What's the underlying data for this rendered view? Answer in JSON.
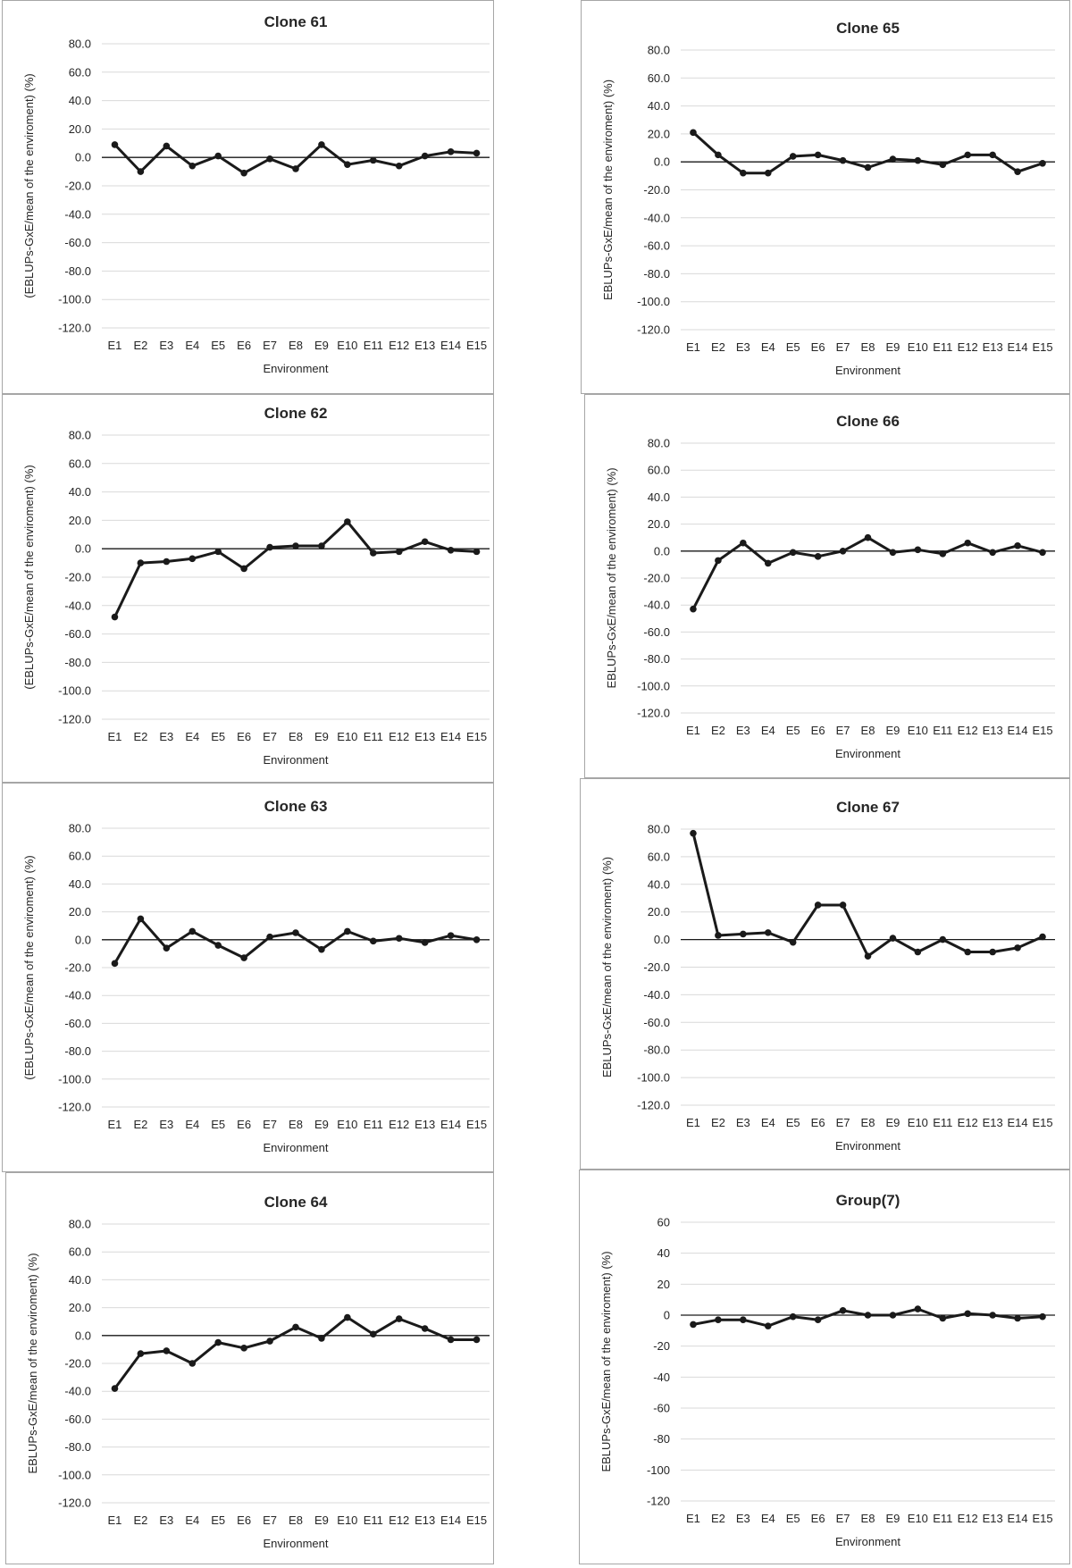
{
  "colors": {
    "line": "#1a1a1a",
    "grid": "#d9d9d9",
    "zero_axis": "#1a1a1a",
    "border": "#a6a6a6",
    "text": "#262626"
  },
  "chart_data": [
    {
      "type": "line",
      "title": "Clone 61",
      "xlabel": "Environment",
      "ylabel": "(EBLUPs-GxE/mean of the enviroment) (%)",
      "categories": [
        "E1",
        "E2",
        "E3",
        "E4",
        "E5",
        "E6",
        "E7",
        "E8",
        "E9",
        "E10",
        "E11",
        "E12",
        "E13",
        "E14",
        "E15"
      ],
      "values": [
        9,
        -10,
        8,
        -6,
        1,
        -11,
        -1,
        -8,
        9,
        -5,
        -2,
        -6,
        1,
        4,
        3
      ],
      "ylim": [
        -120,
        80
      ],
      "yticks": [
        80,
        60,
        40,
        20,
        0,
        -20,
        -40,
        -60,
        -80,
        -100,
        -120
      ],
      "ytick_labels": [
        "80.0",
        "60.0",
        "40.0",
        "20.0",
        "0.0",
        "-20.0",
        "-40.0",
        "-60.0",
        "-80.0",
        "-100.0",
        "-120.0"
      ],
      "grid": true
    },
    {
      "type": "line",
      "title": "Clone 65",
      "xlabel": "Environment",
      "ylabel": "EBLUPs-GxE/mean of the enviroment) (%)",
      "categories": [
        "E1",
        "E2",
        "E3",
        "E4",
        "E5",
        "E6",
        "E7",
        "E8",
        "E9",
        "E10",
        "E11",
        "E12",
        "E13",
        "E14",
        "E15"
      ],
      "values": [
        21,
        5,
        -8,
        -8,
        4,
        5,
        1,
        -4,
        2,
        1,
        -2,
        5,
        5,
        -7,
        -1
      ],
      "ylim": [
        -120,
        80
      ],
      "yticks": [
        80,
        60,
        40,
        20,
        0,
        -20,
        -40,
        -60,
        -80,
        -100,
        -120
      ],
      "ytick_labels": [
        "80.0",
        "60.0",
        "40.0",
        "20.0",
        "0.0",
        "-20.0",
        "-40.0",
        "-60.0",
        "-80.0",
        "-100.0",
        "-120.0"
      ],
      "grid": true
    },
    {
      "type": "line",
      "title": "Clone 62",
      "xlabel": "Environment",
      "ylabel": "(EBLUPs-GxE/mean of the enviroment) (%)",
      "categories": [
        "E1",
        "E2",
        "E3",
        "E4",
        "E5",
        "E6",
        "E7",
        "E8",
        "E9",
        "E10",
        "E11",
        "E12",
        "E13",
        "E14",
        "E15"
      ],
      "values": [
        -48,
        -10,
        -9,
        -7,
        -2,
        -14,
        1,
        2,
        2,
        19,
        -3,
        -2,
        5,
        -1,
        -2
      ],
      "ylim": [
        -120,
        80
      ],
      "yticks": [
        80,
        60,
        40,
        20,
        0,
        -20,
        -40,
        -60,
        -80,
        -100,
        -120
      ],
      "ytick_labels": [
        "80.0",
        "60.0",
        "40.0",
        "20.0",
        "0.0",
        "-20.0",
        "-40.0",
        "-60.0",
        "-80.0",
        "-100.0",
        "-120.0"
      ],
      "grid": true
    },
    {
      "type": "line",
      "title": "Clone 66",
      "xlabel": "Environment",
      "ylabel": "EBLUPs-GxE/mean of the enviroment) (%)",
      "categories": [
        "E1",
        "E2",
        "E3",
        "E4",
        "E5",
        "E6",
        "E7",
        "E8",
        "E9",
        "E10",
        "E11",
        "E12",
        "E13",
        "E14",
        "E15"
      ],
      "values": [
        -43,
        -7,
        6,
        -9,
        -1,
        -4,
        0,
        10,
        -1,
        1,
        -2,
        6,
        -1,
        4,
        -1
      ],
      "ylim": [
        -120,
        80
      ],
      "yticks": [
        80,
        60,
        40,
        20,
        0,
        -20,
        -40,
        -60,
        -80,
        -100,
        -120
      ],
      "ytick_labels": [
        "80.0",
        "60.0",
        "40.0",
        "20.0",
        "0.0",
        "-20.0",
        "-40.0",
        "-60.0",
        "-80.0",
        "-100.0",
        "-120.0"
      ],
      "grid": true
    },
    {
      "type": "line",
      "title": "Clone 63",
      "xlabel": "Environment",
      "ylabel": "(EBLUPs-GxE/mean of the enviroment) (%)",
      "categories": [
        "E1",
        "E2",
        "E3",
        "E4",
        "E5",
        "E6",
        "E7",
        "E8",
        "E9",
        "E10",
        "E11",
        "E12",
        "E13",
        "E14",
        "E15"
      ],
      "values": [
        -17,
        15,
        -6,
        6,
        -4,
        -13,
        2,
        5,
        -7,
        6,
        -1,
        1,
        -2,
        3,
        0
      ],
      "ylim": [
        -120,
        80
      ],
      "yticks": [
        80,
        60,
        40,
        20,
        0,
        -20,
        -40,
        -60,
        -80,
        -100,
        -120
      ],
      "ytick_labels": [
        "80.0",
        "60.0",
        "40.0",
        "20.0",
        "0.0",
        "-20.0",
        "-40.0",
        "-60.0",
        "-80.0",
        "-100.0",
        "-120.0"
      ],
      "grid": true
    },
    {
      "type": "line",
      "title": "Clone 67",
      "xlabel": "Environment",
      "ylabel": "EBLUPs-GxE/mean of the enviroment) (%)",
      "categories": [
        "E1",
        "E2",
        "E3",
        "E4",
        "E5",
        "E6",
        "E7",
        "E8",
        "E9",
        "E10",
        "E11",
        "E12",
        "E13",
        "E14",
        "E15"
      ],
      "values": [
        77,
        3,
        4,
        5,
        -2,
        25,
        25,
        -12,
        1,
        -9,
        0,
        -9,
        -9,
        -6,
        2
      ],
      "ylim": [
        -120,
        80
      ],
      "yticks": [
        80,
        60,
        40,
        20,
        0,
        -20,
        -40,
        -60,
        -80,
        -100,
        -120
      ],
      "ytick_labels": [
        "80.0",
        "60.0",
        "40.0",
        "20.0",
        "0.0",
        "-20.0",
        "-40.0",
        "-60.0",
        "-80.0",
        "-100.0",
        "-120.0"
      ],
      "grid": true
    },
    {
      "type": "line",
      "title": "Clone 64",
      "xlabel": "Environment",
      "ylabel": "EBLUPs-GxE/mean of the enviroment) (%)",
      "categories": [
        "E1",
        "E2",
        "E3",
        "E4",
        "E5",
        "E6",
        "E7",
        "E8",
        "E9",
        "E10",
        "E11",
        "E12",
        "E13",
        "E14",
        "E15"
      ],
      "values": [
        -38,
        -13,
        -11,
        -20,
        -5,
        -9,
        -4,
        6,
        -2,
        13,
        1,
        12,
        5,
        -3,
        -3
      ],
      "ylim": [
        -120,
        80
      ],
      "yticks": [
        80,
        60,
        40,
        20,
        0,
        -20,
        -40,
        -60,
        -80,
        -100,
        -120
      ],
      "ytick_labels": [
        "80.0",
        "60.0",
        "40.0",
        "20.0",
        "0.0",
        "-20.0",
        "-40.0",
        "-60.0",
        "-80.0",
        "-100.0",
        "-120.0"
      ],
      "grid": true
    },
    {
      "type": "line",
      "title": "Group(7)",
      "xlabel": "Environment",
      "ylabel": "EBLUPs-GxE/mean of the enviroment) (%)",
      "categories": [
        "E1",
        "E2",
        "E3",
        "E4",
        "E5",
        "E6",
        "E7",
        "E8",
        "E9",
        "E10",
        "E11",
        "E12",
        "E13",
        "E14",
        "E15"
      ],
      "values": [
        -6,
        -3,
        -3,
        -7,
        -1,
        -3,
        3,
        0,
        0,
        4,
        -2,
        1,
        0,
        -2,
        -1
      ],
      "ylim": [
        -120,
        60
      ],
      "yticks": [
        60,
        40,
        20,
        0,
        -20,
        -40,
        -60,
        -80,
        -100,
        -120
      ],
      "ytick_labels": [
        "60",
        "40",
        "20",
        "0",
        "-20",
        "-40",
        "-60",
        "-80",
        "-100",
        "-120"
      ],
      "grid": true
    }
  ]
}
